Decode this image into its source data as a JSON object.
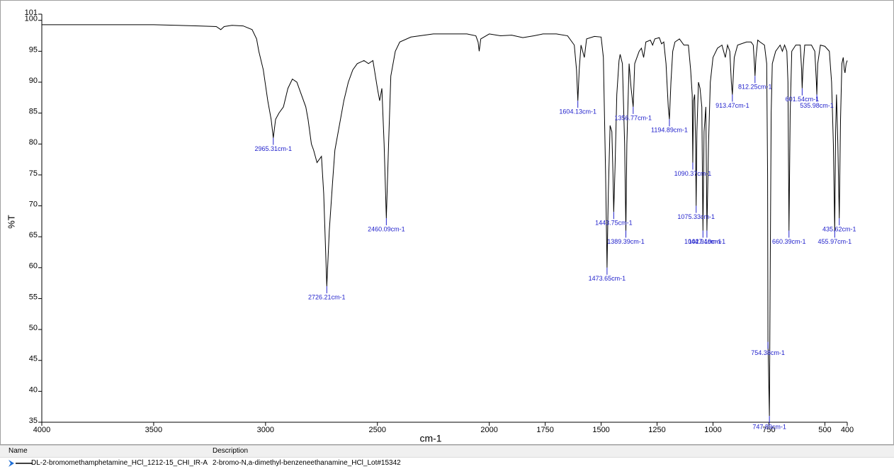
{
  "chart_data": {
    "type": "line",
    "x_label": "cm-1",
    "y_label": "%T",
    "xlim": [
      4000,
      400
    ],
    "ylim": [
      35,
      101
    ],
    "xticks": [
      4000,
      3500,
      3000,
      2500,
      2000,
      1750,
      1500,
      1250,
      1000,
      750,
      500,
      400
    ],
    "yticks": [
      35,
      40,
      45,
      50,
      55,
      60,
      65,
      70,
      75,
      80,
      85,
      90,
      95,
      100,
      101
    ],
    "legend_headers": [
      "Name",
      "Description"
    ],
    "x": [
      4000,
      3800,
      3500,
      3300,
      3220,
      3200,
      3185,
      3150,
      3100,
      3060,
      3040,
      3030,
      3010,
      2990,
      2975,
      2965.31,
      2955,
      2940,
      2920,
      2900,
      2880,
      2860,
      2840,
      2820,
      2810,
      2795,
      2785,
      2770,
      2760,
      2750,
      2740,
      2726.21,
      2715,
      2700,
      2690,
      2670,
      2650,
      2630,
      2610,
      2590,
      2560,
      2540,
      2520,
      2500,
      2490,
      2480,
      2470,
      2460.09,
      2450,
      2440,
      2420,
      2400,
      2350,
      2250,
      2100,
      2060,
      2050,
      2045,
      2038,
      2000,
      1950,
      1900,
      1850,
      1800,
      1760,
      1700,
      1650,
      1620,
      1610,
      1604.13,
      1598,
      1590,
      1575,
      1565,
      1530,
      1500,
      1490,
      1480,
      1473.65,
      1468,
      1460,
      1452,
      1447,
      1443.75,
      1438,
      1430,
      1420,
      1415,
      1405,
      1395,
      1389.39,
      1385,
      1375,
      1366,
      1356.77,
      1350,
      1340,
      1330,
      1320,
      1310,
      1300,
      1280,
      1270,
      1260,
      1240,
      1230,
      1220,
      1210,
      1200,
      1194.89,
      1188,
      1180,
      1170,
      1150,
      1130,
      1110,
      1100,
      1093,
      1090.37,
      1087,
      1082,
      1078,
      1075.33,
      1072,
      1065,
      1058,
      1050,
      1044.94,
      1040,
      1032,
      1027.19,
      1020,
      1012,
      1000,
      980,
      960,
      945,
      935,
      925,
      918,
      913.47,
      905,
      890,
      850,
      830,
      820,
      815,
      812.25,
      808,
      800,
      790,
      770,
      760,
      756,
      754.38,
      750,
      747.89,
      745,
      740,
      735,
      720,
      700,
      690,
      680,
      670,
      665,
      660.39,
      655,
      648,
      630,
      610,
      604,
      601.54,
      598,
      590,
      560,
      545,
      538,
      535.98,
      532,
      520,
      500,
      480,
      470,
      462,
      455.97,
      452,
      448,
      442,
      435.62,
      430,
      424,
      418,
      413,
      410,
      405,
      400
    ],
    "series": [
      {
        "name": "DL-2-bromomethamphetamine_HCl_1212-15_CHI_IR-A",
        "description": "2-bromo-N,a-dimethyl-benzeneethanamine_HCl_Lot#15342",
        "color": "#000000",
        "values": [
          99.3,
          99.3,
          99.3,
          99.1,
          99.0,
          98.5,
          99.0,
          99.2,
          99.1,
          98.5,
          97,
          95,
          92,
          87,
          84,
          81,
          84,
          85,
          86,
          89,
          90.5,
          90,
          88,
          86,
          84,
          80,
          79,
          77,
          77.5,
          78,
          72,
          57,
          66,
          74,
          79,
          83,
          87,
          90,
          92,
          93,
          93.5,
          93,
          93.5,
          89,
          87,
          89,
          80,
          68,
          80,
          91,
          95,
          96.5,
          97.3,
          97.8,
          97.8,
          97.5,
          96.5,
          95,
          97,
          97.8,
          97.5,
          97.6,
          97.2,
          97.5,
          97.8,
          97.8,
          97.5,
          96,
          92,
          87,
          92,
          96,
          94,
          97,
          97.4,
          97.3,
          94,
          75,
          60,
          72,
          83,
          82,
          75,
          69,
          76,
          88,
          93.5,
          94.5,
          93,
          80,
          66,
          80,
          93,
          89,
          86,
          93,
          94,
          95,
          95.5,
          94,
          96.5,
          96.8,
          96,
          97,
          97.2,
          96.2,
          96.5,
          93,
          86,
          84,
          90,
          95,
          96.5,
          97,
          96,
          96,
          92,
          88,
          77,
          87,
          88,
          80,
          70,
          82,
          90,
          89,
          86,
          66,
          82,
          86,
          66,
          80,
          90,
          94,
          95.5,
          96,
          94,
          96,
          95,
          90,
          88,
          94,
          96,
          96.5,
          96.5,
          96,
          93,
          91,
          94,
          96.8,
          96.5,
          96,
          93,
          75,
          48,
          40,
          36,
          55,
          85,
          93,
          95,
          96,
          95,
          96,
          95,
          90,
          66,
          85,
          95,
          96,
          96,
          92,
          89,
          92,
          96,
          96,
          95,
          90,
          88,
          93,
          96,
          95.8,
          95,
          90,
          80,
          66,
          82,
          88,
          80,
          68,
          84,
          93,
          94,
          92,
          91.5,
          93,
          93.5
        ]
      }
    ],
    "annotations": [
      {
        "x": 2965.31,
        "y": 81,
        "label": "2965.31cm-1"
      },
      {
        "x": 2726.21,
        "y": 57,
        "label": "2726.21cm-1"
      },
      {
        "x": 2460.09,
        "y": 68,
        "label": "2460.09cm-1"
      },
      {
        "x": 1604.13,
        "y": 87,
        "label": "1604.13cm-1"
      },
      {
        "x": 1473.65,
        "y": 60,
        "label": "1473.65cm-1"
      },
      {
        "x": 1443.75,
        "y": 69,
        "label": "1443.75cm-1"
      },
      {
        "x": 1389.39,
        "y": 66,
        "label": "1389.39cm-1"
      },
      {
        "x": 1356.77,
        "y": 86,
        "label": "1356.77cm-1"
      },
      {
        "x": 1194.89,
        "y": 84,
        "label": "1194.89cm-1"
      },
      {
        "x": 1090.37,
        "y": 77,
        "label": "1090.37cm-1"
      },
      {
        "x": 1075.33,
        "y": 70,
        "label": "1075.33cm-1"
      },
      {
        "x": 1044.94,
        "y": 66,
        "label": "1044.94cm-1"
      },
      {
        "x": 1027.19,
        "y": 66,
        "label": "1027.19cm-1"
      },
      {
        "x": 913.47,
        "y": 88,
        "label": "913.47cm-1"
      },
      {
        "x": 812.25,
        "y": 91,
        "label": "812.25cm-1"
      },
      {
        "x": 754.38,
        "y": 48,
        "label": "754.38cm-1"
      },
      {
        "x": 747.89,
        "y": 36,
        "label": "747.89cm-1"
      },
      {
        "x": 660.39,
        "y": 66,
        "label": "660.39cm-1"
      },
      {
        "x": 601.54,
        "y": 89,
        "label": "601.54cm-1"
      },
      {
        "x": 535.98,
        "y": 88,
        "label": "535.98cm-1"
      },
      {
        "x": 455.97,
        "y": 66,
        "label": "455.97cm-1"
      },
      {
        "x": 435.62,
        "y": 68,
        "label": "435.62cm-1"
      }
    ]
  }
}
